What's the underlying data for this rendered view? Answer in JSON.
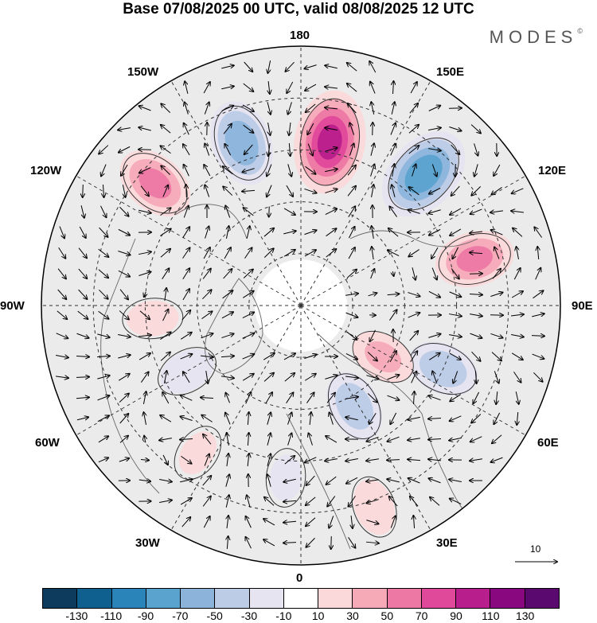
{
  "title": "Base 07/08/2025 00 UTC, valid 08/08/2025 12 UTC",
  "logo": "MODES",
  "logo_mark": "©",
  "longitude_labels": {
    "lon_180": "180",
    "lon_150e": "150E",
    "lon_120e": "120E",
    "lon_90e": "90E",
    "lon_60e": "60E",
    "lon_30e": "30E",
    "lon_0": "0",
    "lon_30w": "30W",
    "lon_60w": "60W",
    "lon_90w": "90W",
    "lon_120w": "120W",
    "lon_150w": "150W"
  },
  "vector_scale_label": "10",
  "colorbar": {
    "colors": [
      "#0d3b5e",
      "#0f5f8f",
      "#2b84b9",
      "#5ba3cf",
      "#8cb4db",
      "#bccbe6",
      "#e5e4f0",
      "#ffffff",
      "#fbd9da",
      "#f6aab8",
      "#ed78a4",
      "#e0489a",
      "#b81e8c",
      "#8a087f",
      "#5a0a6e"
    ],
    "ticks": [
      "-130",
      "-110",
      "-90",
      "-70",
      "-50",
      "-30",
      "-10",
      "10",
      "30",
      "50",
      "70",
      "90",
      "110",
      "130"
    ]
  },
  "anomaly_cells": [
    {
      "name": "cell-anomaly-150e-positive",
      "lon": 170,
      "colat": 48,
      "value": 100
    },
    {
      "name": "cell-anomaly-135e-negative",
      "lon": 137,
      "colat": 52,
      "value": -90
    },
    {
      "name": "cell-anomaly-160w-negative",
      "lon": -160,
      "colat": 50,
      "value": -70
    },
    {
      "name": "cell-anomaly-125w-positive",
      "lon": -130,
      "colat": 55,
      "value": 60
    },
    {
      "name": "cell-anomaly-105e-positive",
      "lon": 105,
      "colat": 52,
      "value": 60
    },
    {
      "name": "cell-anomaly-65e-negative",
      "lon": 66,
      "colat": 45,
      "value": -50
    },
    {
      "name": "cell-anomaly-55e-positive",
      "lon": 58,
      "colat": 28,
      "value": 40
    },
    {
      "name": "cell-anomaly-30e-negative",
      "lon": 28,
      "colat": 33,
      "value": -50
    },
    {
      "name": "cell-anomaly-20e-positive",
      "lon": 20,
      "colat": 62,
      "value": 30
    },
    {
      "name": "cell-anomaly-35w-positive",
      "lon": -35,
      "colat": 52,
      "value": 20
    },
    {
      "name": "cell-anomaly-80w-positive",
      "lon": -85,
      "colat": 43,
      "value": 25
    },
    {
      "name": "cell-anomaly-60w-negative",
      "lon": -60,
      "colat": 38,
      "value": -30
    },
    {
      "name": "cell-anomaly-0-negative",
      "lon": -5,
      "colat": 50,
      "value": -20
    }
  ]
}
